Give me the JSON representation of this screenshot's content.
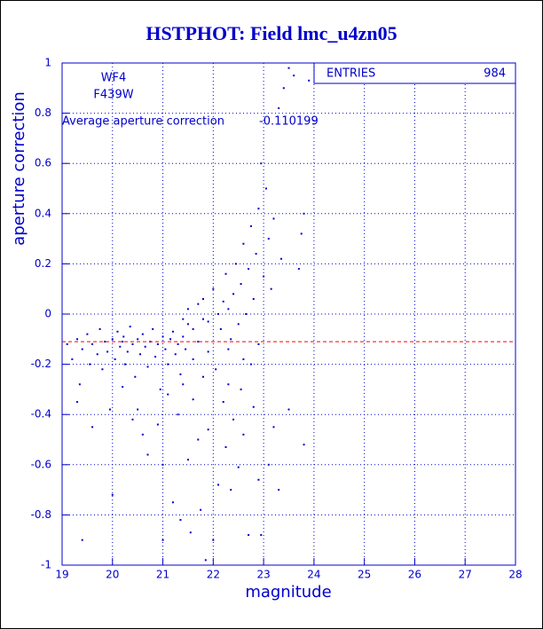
{
  "chart_data": {
    "type": "scatter",
    "title": "HSTPHOT: Field lmc_u4zn05",
    "xlabel": "magnitude",
    "ylabel": "aperture correction",
    "labels": [
      "WF4",
      "F439W"
    ],
    "mean_label": "Average aperture correction",
    "mean": -0.110199,
    "mean_color": "#ff0000",
    "stats_label": "ENTRIES",
    "entries": 984,
    "color": "#0000cc",
    "grid": true,
    "xlim": [
      19,
      28
    ],
    "ylim": [
      -1,
      1
    ],
    "xticks": [
      19,
      20,
      21,
      22,
      23,
      24,
      25,
      26,
      27,
      28
    ],
    "yticks": [
      -1,
      -0.8,
      -0.6,
      -0.4,
      -0.2,
      0,
      0.2,
      0.4,
      0.6,
      0.8,
      1
    ],
    "x": [
      19.1,
      19.2,
      19.3,
      19.35,
      19.4,
      19.5,
      19.55,
      19.6,
      19.7,
      19.75,
      19.8,
      19.85,
      19.9,
      19.95,
      20.0,
      20.05,
      20.1,
      20.15,
      20.2,
      20.22,
      20.25,
      20.3,
      20.35,
      20.4,
      20.45,
      20.5,
      20.55,
      20.6,
      20.65,
      20.7,
      20.75,
      20.8,
      20.85,
      20.9,
      20.95,
      21.0,
      21.05,
      21.1,
      21.15,
      21.2,
      21.25,
      21.3,
      21.35,
      21.4,
      21.45,
      21.5,
      21.6,
      21.7,
      21.8,
      21.9,
      19.4,
      19.6,
      19.3,
      20.0,
      20.2,
      20.4,
      20.5,
      20.6,
      20.7,
      20.9,
      21.0,
      21.1,
      21.0,
      21.2,
      21.3,
      21.35,
      21.4,
      21.5,
      21.55,
      21.6,
      21.7,
      21.75,
      21.8,
      21.85,
      21.9,
      22.0,
      22.05,
      22.1,
      22.2,
      22.25,
      22.3,
      22.35,
      22.4,
      22.5,
      22.55,
      22.6,
      22.7,
      22.75,
      22.8,
      22.9,
      22.95,
      23.1,
      23.2,
      23.3,
      23.5,
      23.8,
      21.4,
      21.5,
      21.6,
      21.7,
      21.8,
      21.9,
      22.0,
      22.1,
      22.15,
      22.2,
      22.25,
      22.3,
      22.35,
      22.4,
      22.45,
      22.5,
      22.55,
      22.6,
      22.65,
      22.7,
      22.75,
      22.8,
      22.85,
      22.9,
      22.95,
      23.0,
      23.05,
      23.1,
      23.15,
      23.2,
      23.3,
      23.35,
      23.4,
      23.5,
      23.6,
      23.7,
      23.75,
      23.8,
      23.9,
      22.3,
      22.6,
      22.9
    ],
    "values": [
      -0.12,
      -0.18,
      -0.1,
      -0.28,
      -0.14,
      -0.08,
      -0.2,
      -0.12,
      -0.16,
      -0.06,
      -0.22,
      -0.11,
      -0.15,
      -0.38,
      -0.1,
      -0.18,
      -0.07,
      -0.13,
      -0.11,
      -0.09,
      -0.2,
      -0.15,
      -0.05,
      -0.12,
      -0.25,
      -0.1,
      -0.16,
      -0.08,
      -0.13,
      -0.21,
      -0.11,
      -0.06,
      -0.17,
      -0.12,
      -0.3,
      -0.09,
      -0.14,
      -0.2,
      -0.1,
      -0.07,
      -0.16,
      -0.12,
      -0.24,
      -0.09,
      -0.14,
      -0.04,
      -0.18,
      -0.11,
      -0.02,
      -0.15,
      -0.9,
      -0.45,
      -0.35,
      -0.72,
      -0.29,
      -0.42,
      -0.38,
      -0.48,
      -0.56,
      -0.44,
      -0.6,
      -0.32,
      -0.9,
      -0.75,
      -0.4,
      -0.82,
      -0.28,
      -0.58,
      -0.87,
      -0.34,
      -0.5,
      -0.78,
      -0.25,
      -0.98,
      -0.46,
      -0.9,
      -0.22,
      -0.68,
      -0.35,
      -0.53,
      -0.28,
      -0.7,
      -0.42,
      -0.61,
      -0.3,
      -0.48,
      -0.88,
      -0.2,
      -0.37,
      -0.66,
      -0.88,
      -0.6,
      -0.45,
      -0.7,
      -0.38,
      -0.52,
      -0.02,
      0.02,
      -0.06,
      0.04,
      0.06,
      -0.03,
      0.1,
      0.0,
      -0.06,
      0.05,
      0.16,
      0.02,
      -0.1,
      0.08,
      0.2,
      -0.04,
      0.12,
      0.28,
      0.0,
      0.18,
      0.35,
      0.06,
      0.24,
      0.42,
      0.6,
      0.15,
      0.5,
      0.3,
      0.1,
      0.38,
      0.82,
      0.22,
      0.9,
      0.98,
      0.95,
      0.18,
      0.32,
      0.4,
      0.93,
      -0.14,
      -0.18,
      -0.12
    ]
  }
}
